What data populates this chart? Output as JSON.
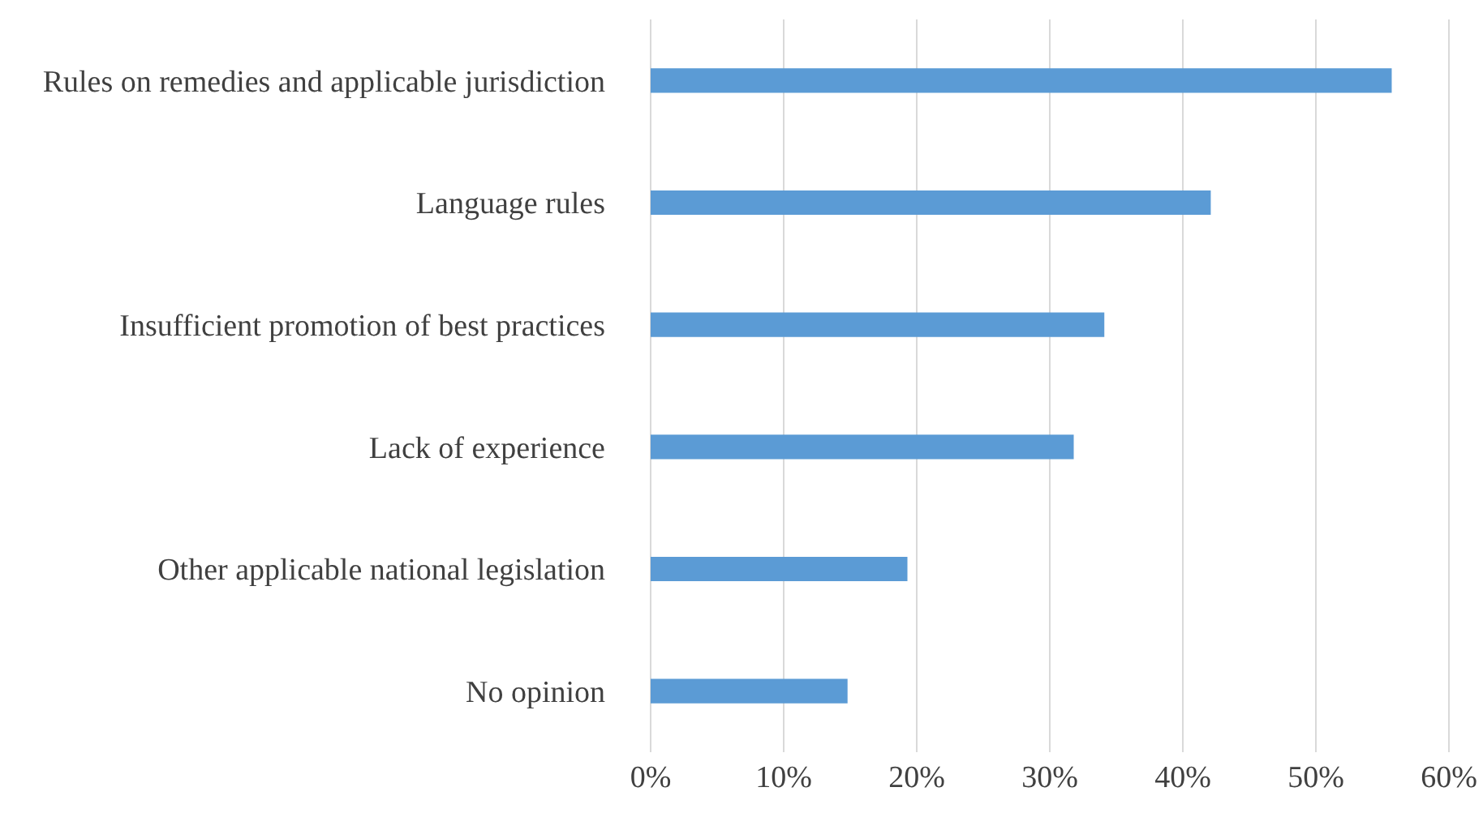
{
  "chart_data": {
    "type": "bar",
    "orientation": "horizontal",
    "categories": [
      "Rules on remedies and applicable jurisdiction",
      "Language rules",
      "Insufficient promotion of best practices",
      "Lack of experience",
      "Other applicable national legislation",
      "No opinion"
    ],
    "values": [
      55.7,
      42.1,
      34.1,
      31.8,
      19.3,
      14.8
    ],
    "color": "#5b9bd5",
    "xlim": [
      0,
      60
    ],
    "xticks": [
      {
        "value": 0,
        "label": "0%"
      },
      {
        "value": 10,
        "label": "10%"
      },
      {
        "value": 20,
        "label": "20%"
      },
      {
        "value": 30,
        "label": "30%"
      },
      {
        "value": 40,
        "label": "40%"
      },
      {
        "value": 50,
        "label": "50%"
      },
      {
        "value": 60,
        "label": "60%"
      }
    ],
    "grid": "x"
  }
}
